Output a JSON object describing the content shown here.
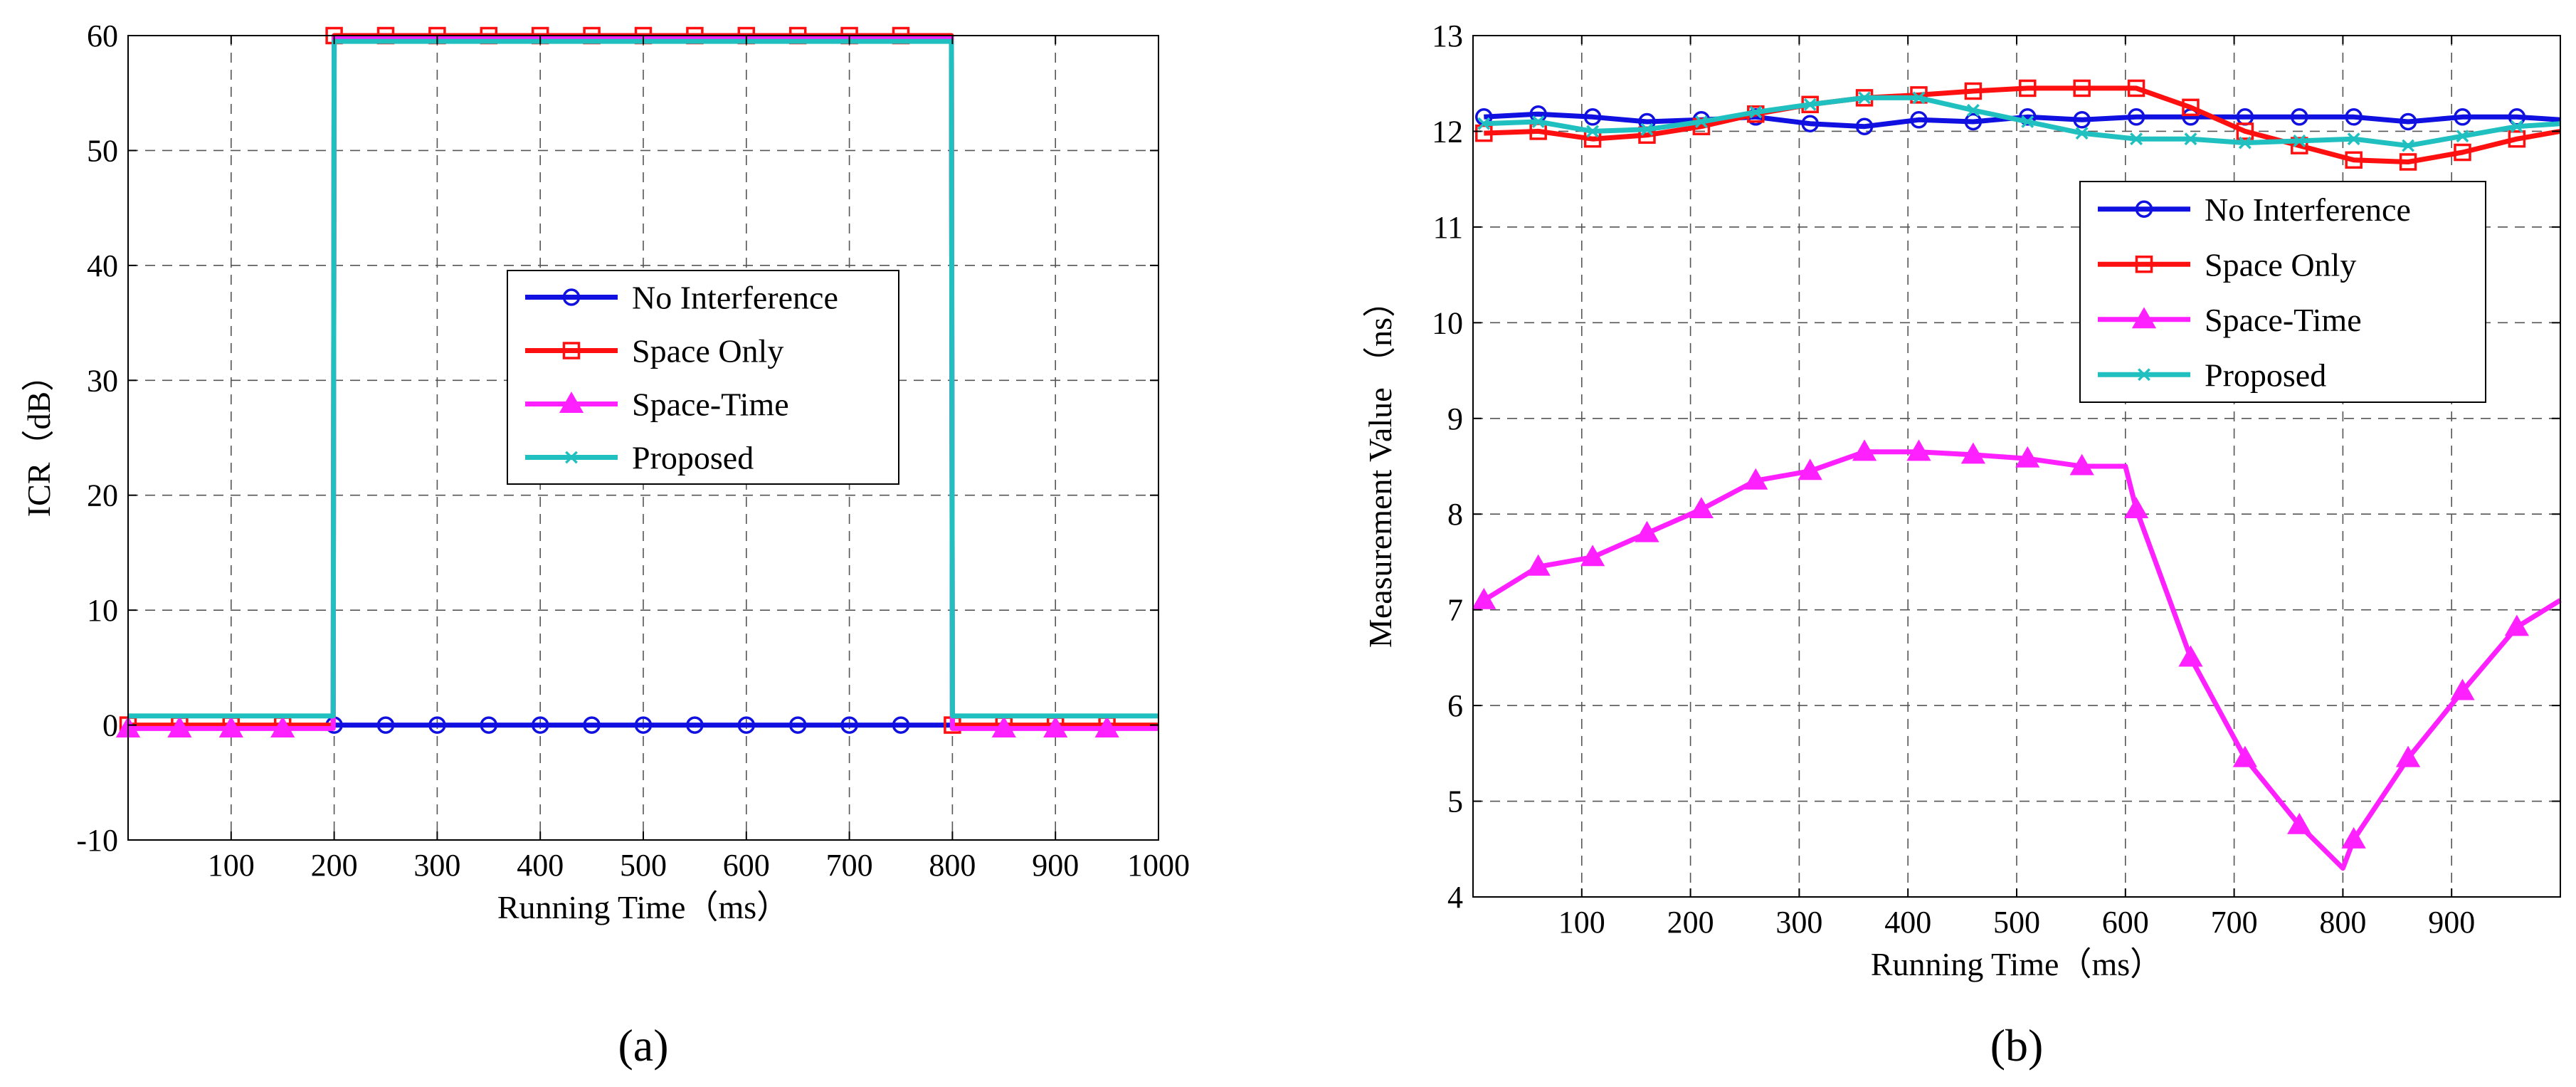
{
  "chart_data": [
    {
      "type": "line",
      "panel_label": "(a)",
      "title": "",
      "xlabel": "Running Time（ms）",
      "ylabel": "ICR（dB）",
      "xlim": [
        0,
        1000
      ],
      "ylim": [
        -10,
        60
      ],
      "grid": true,
      "legend_position": "center",
      "x_ticks": [
        100,
        200,
        300,
        400,
        500,
        600,
        700,
        800,
        900,
        1000
      ],
      "y_ticks": [
        -10,
        0,
        10,
        20,
        30,
        40,
        50,
        60
      ],
      "series": [
        {
          "name": "No Interference",
          "color": "#1010e0",
          "marker": "circle",
          "x": [
            200,
            800
          ],
          "y": [
            0,
            0
          ],
          "marker_x": [
            200,
            250,
            300,
            350,
            400,
            450,
            500,
            550,
            600,
            650,
            700,
            750
          ]
        },
        {
          "name": "Space Only",
          "color": "#ff1010",
          "marker": "square",
          "x": [
            0,
            199,
            200,
            799,
            800,
            1000
          ],
          "y": [
            0,
            0,
            60,
            60,
            0,
            0
          ],
          "marker_x": [
            0,
            50,
            100,
            150,
            200,
            250,
            300,
            350,
            400,
            450,
            500,
            550,
            600,
            650,
            700,
            750,
            800,
            850,
            900,
            950
          ]
        },
        {
          "name": "Space-Time",
          "color": "#ff20ff",
          "marker": "triangle",
          "x": [
            0,
            199,
            200,
            799,
            800,
            1000
          ],
          "y": [
            -0.3,
            -0.3,
            59.8,
            59.8,
            -0.3,
            -0.3
          ],
          "marker_x": [
            0,
            50,
            100,
            150,
            850,
            900,
            950
          ]
        },
        {
          "name": "Proposed",
          "color": "#20c0c0",
          "marker": "x",
          "x": [
            0,
            199,
            200,
            799,
            800,
            1000
          ],
          "y": [
            0.8,
            0.8,
            59.5,
            59.5,
            0.8,
            0.8
          ],
          "marker_x": []
        }
      ]
    },
    {
      "type": "line",
      "panel_label": "(b)",
      "title": "",
      "xlabel": "Running Time（ms）",
      "ylabel": "Measurement Value （ns）",
      "xlim": [
        0,
        1000
      ],
      "ylim": [
        4,
        13
      ],
      "grid": true,
      "legend_position": "top-right",
      "x_ticks": [
        100,
        200,
        300,
        400,
        500,
        600,
        700,
        800,
        900
      ],
      "y_ticks": [
        4,
        5,
        6,
        7,
        8,
        9,
        10,
        11,
        12,
        13
      ],
      "series": [
        {
          "name": "No Interference",
          "color": "#1010e0",
          "marker": "circle",
          "x": [
            10,
            60,
            110,
            160,
            210,
            260,
            310,
            360,
            410,
            460,
            510,
            560,
            610,
            660,
            710,
            760,
            810,
            860,
            910,
            960,
            1000
          ],
          "y": [
            12.15,
            12.18,
            12.15,
            12.1,
            12.12,
            12.15,
            12.08,
            12.05,
            12.12,
            12.1,
            12.15,
            12.12,
            12.15,
            12.15,
            12.15,
            12.15,
            12.15,
            12.1,
            12.15,
            12.15,
            12.12
          ],
          "marker_x": [
            10,
            60,
            110,
            160,
            210,
            260,
            310,
            360,
            410,
            460,
            510,
            560,
            610,
            660,
            710,
            760,
            810,
            860,
            910,
            960
          ]
        },
        {
          "name": "Space Only",
          "color": "#ff1010",
          "marker": "square",
          "x": [
            10,
            60,
            110,
            160,
            210,
            260,
            310,
            360,
            410,
            460,
            510,
            560,
            610,
            660,
            710,
            760,
            810,
            860,
            910,
            960,
            1000
          ],
          "y": [
            11.98,
            12.0,
            11.92,
            11.96,
            12.05,
            12.18,
            12.28,
            12.35,
            12.38,
            12.42,
            12.45,
            12.45,
            12.45,
            12.25,
            12.0,
            11.85,
            11.7,
            11.68,
            11.78,
            11.92,
            12.0
          ],
          "marker_x": [
            10,
            60,
            110,
            160,
            210,
            260,
            310,
            360,
            410,
            460,
            510,
            560,
            610,
            660,
            710,
            760,
            810,
            860,
            910,
            960
          ]
        },
        {
          "name": "Space-Time",
          "color": "#ff20ff",
          "marker": "triangle",
          "x": [
            10,
            60,
            110,
            160,
            210,
            260,
            310,
            360,
            410,
            460,
            510,
            560,
            600,
            610,
            660,
            710,
            760,
            800,
            810,
            860,
            910,
            960,
            1000
          ],
          "y": [
            7.1,
            7.45,
            7.55,
            7.8,
            8.05,
            8.35,
            8.45,
            8.65,
            8.65,
            8.62,
            8.58,
            8.5,
            8.5,
            8.05,
            6.5,
            5.45,
            4.75,
            4.3,
            4.6,
            5.45,
            6.15,
            6.82,
            7.1
          ],
          "marker_x": [
            10,
            60,
            110,
            160,
            210,
            260,
            310,
            360,
            410,
            460,
            510,
            560,
            610,
            660,
            710,
            760,
            810,
            860,
            910,
            960
          ]
        },
        {
          "name": "Proposed",
          "color": "#20c0c0",
          "marker": "x",
          "x": [
            10,
            60,
            110,
            160,
            210,
            260,
            310,
            360,
            410,
            460,
            510,
            560,
            610,
            660,
            710,
            760,
            810,
            860,
            910,
            960,
            1000
          ],
          "y": [
            12.08,
            12.1,
            12.0,
            12.02,
            12.1,
            12.2,
            12.28,
            12.35,
            12.35,
            12.22,
            12.1,
            11.98,
            11.92,
            11.92,
            11.88,
            11.9,
            11.92,
            11.85,
            11.95,
            12.05,
            12.08
          ],
          "marker_x": [
            10,
            60,
            110,
            160,
            210,
            260,
            310,
            360,
            410,
            460,
            510,
            560,
            610,
            660,
            710,
            760,
            810,
            860,
            910,
            960
          ]
        }
      ]
    }
  ]
}
